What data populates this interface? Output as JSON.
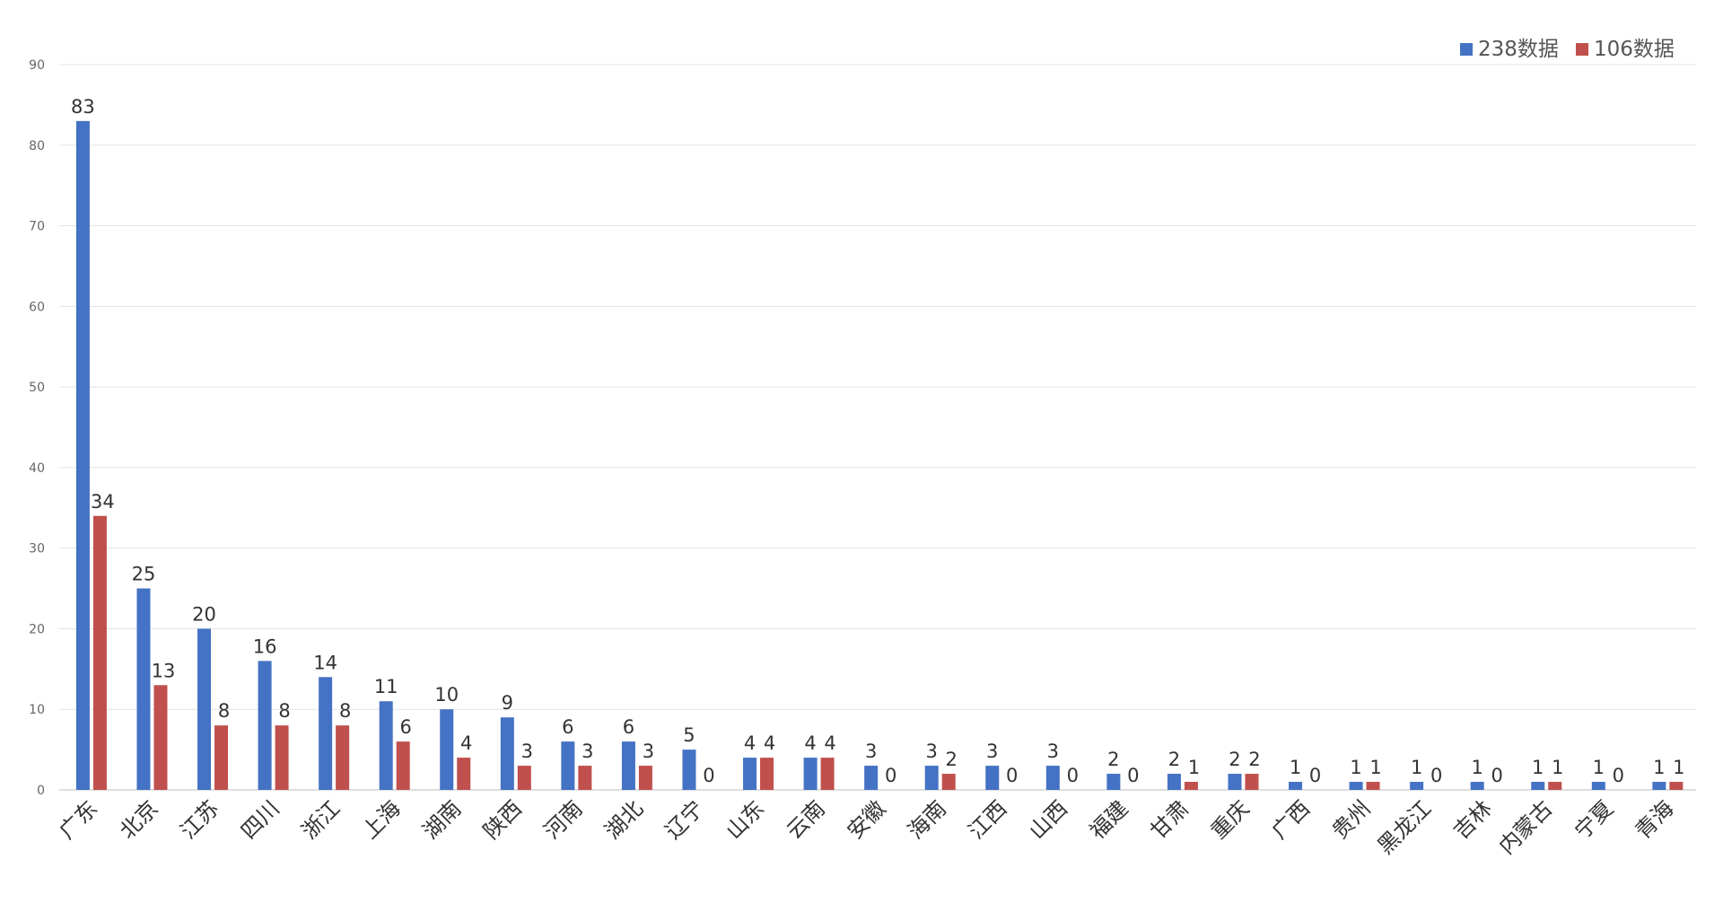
{
  "chart_data": {
    "type": "bar",
    "title": "",
    "xlabel": "",
    "ylabel": "",
    "ylim": [
      0,
      90
    ],
    "yticks": [
      0,
      10,
      20,
      30,
      40,
      50,
      60,
      70,
      80,
      90
    ],
    "grid": true,
    "legend_position": "top-right",
    "categories": [
      "广东",
      "北京",
      "江苏",
      "四川",
      "浙江",
      "上海",
      "湖南",
      "陕西",
      "河南",
      "湖北",
      "辽宁",
      "山东",
      "云南",
      "安徽",
      "海南",
      "江西",
      "山西",
      "福建",
      "甘肃",
      "重庆",
      "广西",
      "贵州",
      "黑龙江",
      "吉林",
      "内蒙古",
      "宁夏",
      "青海"
    ],
    "series": [
      {
        "name": "238数据",
        "color": "#4472c4",
        "values": [
          83,
          25,
          20,
          16,
          14,
          11,
          10,
          9,
          6,
          6,
          5,
          4,
          4,
          3,
          3,
          3,
          3,
          2,
          2,
          2,
          1,
          1,
          1,
          1,
          1,
          1,
          1
        ]
      },
      {
        "name": "106数据",
        "color": "#c0504d",
        "values": [
          34,
          13,
          8,
          8,
          8,
          6,
          4,
          3,
          3,
          3,
          0,
          4,
          4,
          0,
          2,
          0,
          0,
          0,
          1,
          2,
          0,
          1,
          0,
          0,
          1,
          0,
          1
        ]
      }
    ]
  }
}
